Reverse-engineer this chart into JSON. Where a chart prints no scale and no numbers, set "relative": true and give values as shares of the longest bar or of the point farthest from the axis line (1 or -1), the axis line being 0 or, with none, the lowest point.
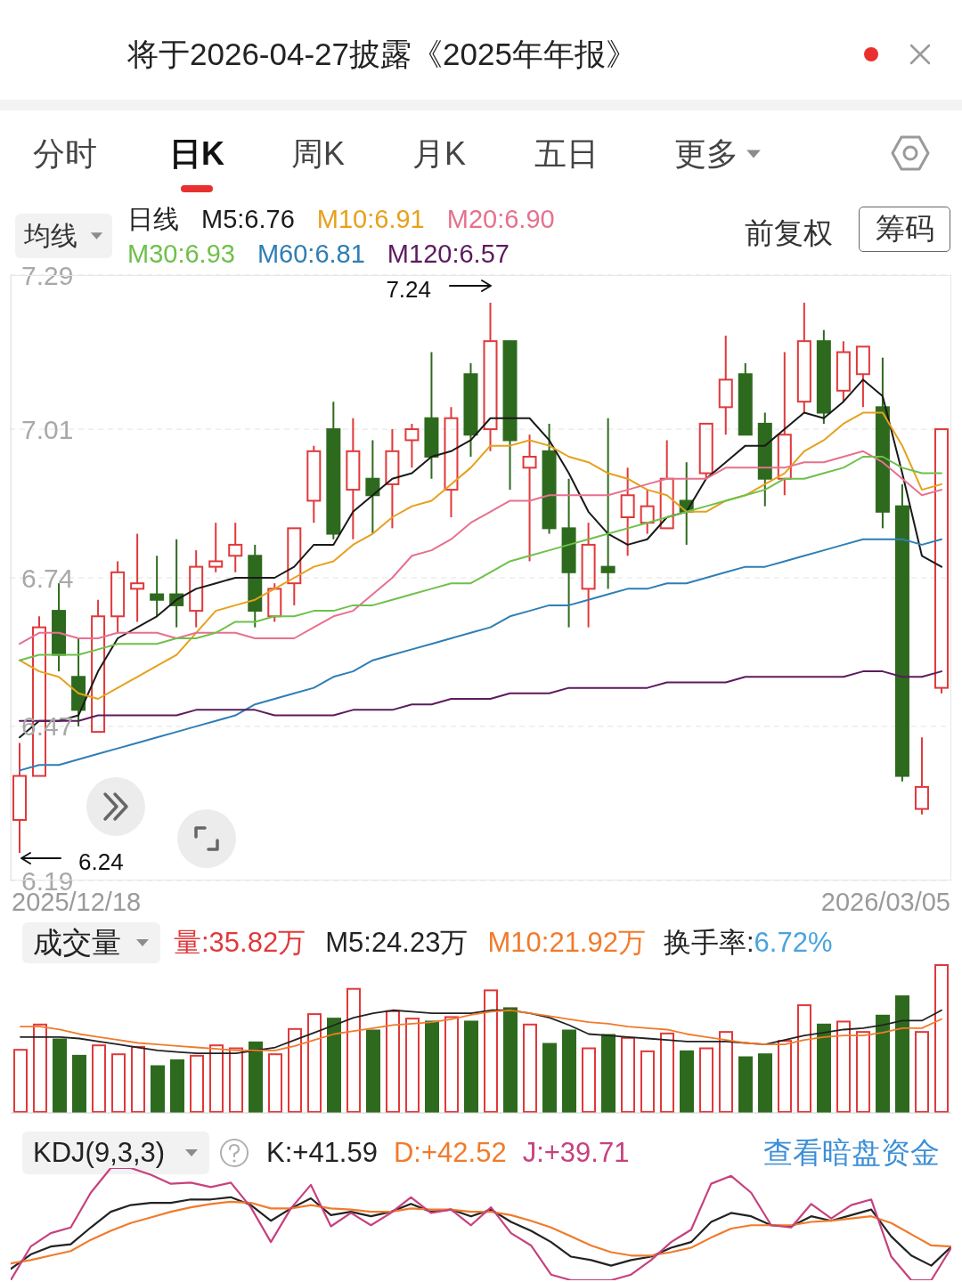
{
  "chart_data": [
    {
      "type": "other",
      "title": "将于2026-04-27披露《2025年年报》",
      "annotations": [
        "分时",
        "日K",
        "周K",
        "月K",
        "五日",
        "更多"
      ]
    },
    {
      "type": "candlestick",
      "categories": [
        null,
        null,
        null,
        null,
        null,
        null,
        null,
        null,
        null,
        null,
        null,
        null,
        null,
        null,
        null,
        null,
        null,
        null,
        null,
        null,
        null,
        null,
        null,
        null,
        null,
        null,
        null,
        null,
        null,
        null,
        null,
        null,
        null,
        null,
        null,
        null,
        null,
        null,
        null,
        null,
        null,
        null,
        null,
        null,
        null,
        null,
        null,
        null
      ],
      "ohlc": [
        [
          6.3,
          6.44,
          6.24,
          6.38
        ],
        [
          6.38,
          6.67,
          6.38,
          6.65
        ],
        [
          6.68,
          6.73,
          6.57,
          6.6
        ],
        [
          6.56,
          6.63,
          6.47,
          6.5
        ],
        [
          6.46,
          6.7,
          6.46,
          6.67
        ],
        [
          6.67,
          6.77,
          6.64,
          6.75
        ],
        [
          6.72,
          6.82,
          6.66,
          6.73
        ],
        [
          6.71,
          6.78,
          6.67,
          6.7
        ],
        [
          6.71,
          6.81,
          6.65,
          6.69
        ],
        [
          6.68,
          6.79,
          6.65,
          6.76
        ],
        [
          6.76,
          6.84,
          6.75,
          6.77
        ],
        [
          6.78,
          6.84,
          6.75,
          6.8
        ],
        [
          6.78,
          6.8,
          6.65,
          6.68
        ],
        [
          6.67,
          6.73,
          6.66,
          6.72
        ],
        [
          6.73,
          6.83,
          6.69,
          6.83
        ],
        [
          6.88,
          6.98,
          6.84,
          6.97
        ],
        [
          7.01,
          7.06,
          6.81,
          6.82
        ],
        [
          6.9,
          7.03,
          6.81,
          6.97
        ],
        [
          6.92,
          6.99,
          6.82,
          6.89
        ],
        [
          6.91,
          7.01,
          6.83,
          6.97
        ],
        [
          6.99,
          7.02,
          6.94,
          7.01
        ],
        [
          7.03,
          7.15,
          6.92,
          6.96
        ],
        [
          6.9,
          7.05,
          6.85,
          7.03
        ],
        [
          7.11,
          7.13,
          6.96,
          7.0
        ],
        [
          7.01,
          7.24,
          6.97,
          7.17
        ],
        [
          7.17,
          7.17,
          6.9,
          6.99
        ],
        [
          6.94,
          7.0,
          6.77,
          6.96
        ],
        [
          6.97,
          7.02,
          6.82,
          6.83
        ],
        [
          6.83,
          6.92,
          6.65,
          6.75
        ],
        [
          6.72,
          6.84,
          6.65,
          6.8
        ],
        [
          6.76,
          7.03,
          6.72,
          6.75
        ],
        [
          6.85,
          6.94,
          6.78,
          6.89
        ],
        [
          6.84,
          6.9,
          6.82,
          6.87
        ],
        [
          6.83,
          6.99,
          6.83,
          6.92
        ],
        [
          6.88,
          6.95,
          6.8,
          6.86
        ],
        [
          6.93,
          7.02,
          6.92,
          7.02
        ],
        [
          7.05,
          7.18,
          7.0,
          7.1
        ],
        [
          7.11,
          7.13,
          7.0,
          7.0
        ],
        [
          7.02,
          7.04,
          6.87,
          6.92
        ],
        [
          6.92,
          7.15,
          6.89,
          7.0
        ],
        [
          7.06,
          7.24,
          7.04,
          7.17
        ],
        [
          7.17,
          7.19,
          7.02,
          7.04
        ],
        [
          7.08,
          7.17,
          7.06,
          7.15
        ],
        [
          7.11,
          7.16,
          7.05,
          7.16
        ],
        [
          7.05,
          7.14,
          6.83,
          6.86
        ],
        [
          6.87,
          6.91,
          6.37,
          6.38
        ],
        [
          6.32,
          6.45,
          6.31,
          6.36
        ],
        [
          6.54,
          7.01,
          6.53,
          7.01
        ]
      ],
      "colors": [
        "#e0393b",
        "#e0393b",
        "#2e6a1e",
        "#2e6a1e",
        "#e0393b",
        "#e0393b",
        "#e0393b",
        "#2e6a1e",
        "#2e6a1e",
        "#e0393b",
        "#e0393b",
        "#e0393b",
        "#2e6a1e",
        "#e0393b",
        "#e0393b",
        "#e0393b",
        "#2e6a1e",
        "#e0393b",
        "#2e6a1e",
        "#e0393b",
        "#e0393b",
        "#2e6a1e",
        "#e0393b",
        "#2e6a1e",
        "#e0393b",
        "#2e6a1e",
        "#e0393b",
        "#2e6a1e",
        "#2e6a1e",
        "#e0393b",
        "#2e6a1e",
        "#e0393b",
        "#e0393b",
        "#e0393b",
        "#2e6a1e",
        "#e0393b",
        "#e0393b",
        "#2e6a1e",
        "#2e6a1e",
        "#e0393b",
        "#e0393b",
        "#2e6a1e",
        "#e0393b",
        "#e0393b",
        "#2e6a1e",
        "#2e6a1e",
        "#e0393b",
        "#e0393b"
      ],
      "series": [
        {
          "name": "M5:6.76",
          "type": "line",
          "color": "#1a1a1a",
          "values": [
            6.45,
            6.48,
            6.48,
            6.49,
            6.57,
            6.63,
            6.65,
            6.67,
            6.7,
            6.72,
            6.73,
            6.74,
            6.74,
            6.74,
            6.76,
            6.8,
            6.8,
            6.86,
            6.89,
            6.92,
            6.93,
            6.96,
            6.97,
            6.99,
            7.03,
            7.03,
            7.03,
            6.99,
            6.93,
            6.86,
            6.82,
            6.8,
            6.81,
            6.85,
            6.86,
            6.92,
            6.95,
            6.98,
            6.98,
            7.01,
            7.04,
            7.03,
            7.06,
            7.1,
            7.07,
            6.93,
            6.78,
            6.76
          ]
        },
        {
          "name": "M10:6.91",
          "type": "line",
          "color": "#e6a11c",
          "values": [
            6.59,
            6.57,
            6.56,
            6.53,
            6.52,
            6.54,
            6.56,
            6.58,
            6.6,
            6.64,
            6.68,
            6.69,
            6.7,
            6.72,
            6.74,
            6.76,
            6.77,
            6.8,
            6.82,
            6.85,
            6.87,
            6.88,
            6.91,
            6.94,
            6.98,
            6.98,
            6.99,
            6.98,
            6.96,
            6.95,
            6.93,
            6.92,
            6.9,
            6.89,
            6.86,
            6.86,
            6.88,
            6.89,
            6.91,
            6.93,
            6.97,
            6.99,
            7.02,
            7.04,
            7.04,
            6.98,
            6.9,
            6.91
          ]
        },
        {
          "name": "M20:6.90",
          "type": "line",
          "color": "#e6718d",
          "values": [
            6.62,
            6.64,
            6.64,
            6.63,
            6.63,
            6.64,
            6.64,
            6.64,
            6.63,
            6.64,
            6.64,
            6.64,
            6.63,
            6.63,
            6.63,
            6.65,
            6.67,
            6.68,
            6.71,
            6.74,
            6.78,
            6.79,
            6.81,
            6.84,
            6.86,
            6.88,
            6.88,
            6.89,
            6.89,
            6.89,
            6.89,
            6.9,
            6.91,
            6.92,
            6.92,
            6.92,
            6.94,
            6.94,
            6.94,
            6.94,
            6.95,
            6.95,
            6.96,
            6.97,
            6.95,
            6.92,
            6.89,
            6.9
          ]
        },
        {
          "name": "M30:6.93",
          "type": "line",
          "color": "#6fc04b",
          "values": [
            6.59,
            6.6,
            6.6,
            6.6,
            6.61,
            6.62,
            6.62,
            6.62,
            6.63,
            6.63,
            6.64,
            6.66,
            6.66,
            6.67,
            6.67,
            6.68,
            6.68,
            6.69,
            6.69,
            6.7,
            6.71,
            6.72,
            6.73,
            6.73,
            6.75,
            6.77,
            6.78,
            6.79,
            6.8,
            6.81,
            6.82,
            6.83,
            6.84,
            6.85,
            6.86,
            6.87,
            6.88,
            6.89,
            6.9,
            6.92,
            6.92,
            6.93,
            6.94,
            6.96,
            6.96,
            6.94,
            6.93,
            6.93
          ]
        },
        {
          "name": "M60:6.81",
          "type": "line",
          "color": "#2f7eb5",
          "values": [
            6.39,
            6.4,
            6.4,
            6.41,
            6.42,
            6.43,
            6.44,
            6.45,
            6.46,
            6.47,
            6.48,
            6.49,
            6.51,
            6.52,
            6.53,
            6.54,
            6.56,
            6.57,
            6.59,
            6.6,
            6.61,
            6.62,
            6.63,
            6.64,
            6.65,
            6.67,
            6.68,
            6.69,
            6.69,
            6.7,
            6.71,
            6.72,
            6.72,
            6.73,
            6.73,
            6.74,
            6.75,
            6.76,
            6.76,
            6.77,
            6.78,
            6.79,
            6.8,
            6.81,
            6.81,
            6.81,
            6.8,
            6.81
          ]
        },
        {
          "name": "M120:6.57",
          "type": "line",
          "color": "#5c1b5e",
          "values": [
            6.48,
            6.48,
            6.48,
            6.48,
            6.49,
            6.49,
            6.49,
            6.49,
            6.49,
            6.5,
            6.5,
            6.5,
            6.5,
            6.49,
            6.49,
            6.49,
            6.49,
            6.5,
            6.5,
            6.5,
            6.51,
            6.51,
            6.52,
            6.52,
            6.52,
            6.53,
            6.53,
            6.53,
            6.54,
            6.54,
            6.54,
            6.54,
            6.54,
            6.55,
            6.55,
            6.55,
            6.55,
            6.56,
            6.56,
            6.56,
            6.56,
            6.56,
            6.56,
            6.57,
            6.57,
            6.56,
            6.56,
            6.57
          ]
        }
      ],
      "ylim": [
        6.19,
        7.29
      ],
      "yticks": [
        6.19,
        6.47,
        6.74,
        7.01,
        7.29
      ],
      "grid": "y",
      "legend": "top left",
      "tick_labels": "y",
      "annotations": [
        "均线",
        "日线",
        "前复权",
        "筹码",
        "2025/12/18",
        "2026/03/05",
        "7.24",
        "6.24"
      ]
    },
    {
      "type": "bar",
      "categories": [
        null,
        null,
        null,
        null,
        null,
        null,
        null,
        null,
        null,
        null,
        null,
        null,
        null,
        null,
        null,
        null,
        null,
        null,
        null,
        null,
        null,
        null,
        null,
        null,
        null,
        null,
        null,
        null,
        null,
        null,
        null,
        null,
        null,
        null,
        null,
        null,
        null,
        null,
        null,
        null,
        null,
        null,
        null,
        null,
        null,
        null,
        null,
        null
      ],
      "relative": true,
      "series": [
        {
          "name": "量:35.82万",
          "type": "bar",
          "color": "#e0393b",
          "colors": [
            "#e0393b",
            "#e0393b",
            "#2e6a1e",
            "#2e6a1e",
            "#e0393b",
            "#e0393b",
            "#e0393b",
            "#2e6a1e",
            "#2e6a1e",
            "#e0393b",
            "#e0393b",
            "#e0393b",
            "#2e6a1e",
            "#e0393b",
            "#e0393b",
            "#e0393b",
            "#2e6a1e",
            "#e0393b",
            "#2e6a1e",
            "#e0393b",
            "#e0393b",
            "#2e6a1e",
            "#e0393b",
            "#2e6a1e",
            "#e0393b",
            "#2e6a1e",
            "#e0393b",
            "#2e6a1e",
            "#2e6a1e",
            "#e0393b",
            "#2e6a1e",
            "#e0393b",
            "#e0393b",
            "#e0393b",
            "#2e6a1e",
            "#e0393b",
            "#e0393b",
            "#2e6a1e",
            "#2e6a1e",
            "#e0393b",
            "#e0393b",
            "#2e6a1e",
            "#e0393b",
            "#e0393b",
            "#2e6a1e",
            "#2e6a1e",
            "#e0393b",
            "#e0393b"
          ],
          "values": [
            0.43,
            0.6,
            0.5,
            0.39,
            0.46,
            0.4,
            0.45,
            0.32,
            0.36,
            0.39,
            0.46,
            0.44,
            0.48,
            0.4,
            0.57,
            0.67,
            0.64,
            0.84,
            0.56,
            0.69,
            0.64,
            0.62,
            0.65,
            0.62,
            0.83,
            0.71,
            0.6,
            0.47,
            0.56,
            0.44,
            0.53,
            0.51,
            0.42,
            0.54,
            0.42,
            0.44,
            0.55,
            0.38,
            0.4,
            0.49,
            0.73,
            0.6,
            0.62,
            0.55,
            0.66,
            0.79,
            0.55,
            1
          ]
        },
        {
          "name": "M5:24.23万",
          "type": "line",
          "color": "#222222",
          "values": [
            0.51,
            0.51,
            0.51,
            0.5,
            0.48,
            0.46,
            0.44,
            0.42,
            0.41,
            0.4,
            0.4,
            0.4,
            0.42,
            0.44,
            0.49,
            0.54,
            0.59,
            0.64,
            0.67,
            0.69,
            0.68,
            0.67,
            0.67,
            0.67,
            0.69,
            0.69,
            0.67,
            0.64,
            0.59,
            0.53,
            0.52,
            0.51,
            0.5,
            0.49,
            0.48,
            0.48,
            0.48,
            0.47,
            0.46,
            0.49,
            0.52,
            0.54,
            0.56,
            0.57,
            0.59,
            0.62,
            0.62,
            0.69
          ]
        },
        {
          "name": "M10:21.92万",
          "type": "line",
          "color": "#f07b2c",
          "values": [
            0.58,
            0.58,
            0.56,
            0.53,
            0.51,
            0.49,
            0.47,
            0.46,
            0.45,
            0.44,
            0.43,
            0.42,
            0.42,
            0.42,
            0.45,
            0.49,
            0.53,
            0.55,
            0.57,
            0.59,
            0.6,
            0.61,
            0.63,
            0.66,
            0.68,
            0.69,
            0.67,
            0.65,
            0.63,
            0.61,
            0.6,
            0.58,
            0.57,
            0.56,
            0.53,
            0.51,
            0.49,
            0.47,
            0.46,
            0.46,
            0.49,
            0.51,
            0.52,
            0.52,
            0.54,
            0.57,
            0.57,
            0.63
          ]
        }
      ],
      "legend": "top left",
      "tick_labels": false,
      "annotations": [
        "成交量",
        "换手率:",
        "6.72%"
      ]
    },
    {
      "type": "line",
      "categories": [
        null,
        null,
        null,
        null,
        null,
        null,
        null,
        null,
        null,
        null,
        null,
        null,
        null,
        null,
        null,
        null,
        null,
        null,
        null,
        null,
        null,
        null,
        null,
        null,
        null,
        null,
        null,
        null,
        null,
        null,
        null,
        null,
        null,
        null,
        null,
        null,
        null,
        null,
        null,
        null,
        null,
        null,
        null,
        null,
        null,
        null,
        null,
        null
      ],
      "relative": true,
      "series": [
        {
          "name": "K:+41.59",
          "color": "#222222",
          "values": [
            0.1,
            0.23,
            0.3,
            0.32,
            0.47,
            0.61,
            0.67,
            0.69,
            0.69,
            0.72,
            0.72,
            0.74,
            0.67,
            0.53,
            0.64,
            0.73,
            0.58,
            0.61,
            0.57,
            0.61,
            0.68,
            0.61,
            0.63,
            0.57,
            0.63,
            0.52,
            0.44,
            0.34,
            0.21,
            0.18,
            0.13,
            0.18,
            0.21,
            0.29,
            0.34,
            0.52,
            0.6,
            0.57,
            0.49,
            0.48,
            0.57,
            0.53,
            0.58,
            0.63,
            0.39,
            0.22,
            0.13,
            0.3
          ]
        },
        {
          "name": "D:+42.52",
          "color": "#f07b2c",
          "values": [
            0.15,
            0.18,
            0.22,
            0.26,
            0.36,
            0.44,
            0.51,
            0.56,
            0.61,
            0.65,
            0.68,
            0.7,
            0.69,
            0.64,
            0.64,
            0.67,
            0.64,
            0.63,
            0.61,
            0.61,
            0.64,
            0.63,
            0.63,
            0.61,
            0.61,
            0.58,
            0.53,
            0.47,
            0.39,
            0.31,
            0.25,
            0.22,
            0.22,
            0.25,
            0.29,
            0.38,
            0.46,
            0.49,
            0.49,
            0.49,
            0.52,
            0.53,
            0.55,
            0.57,
            0.51,
            0.41,
            0.31,
            0.3
          ]
        },
        {
          "name": "J:+39.71",
          "color": "#c7417e",
          "values": [
            0,
            0.3,
            0.42,
            0.47,
            0.78,
            1,
            1,
            0.94,
            0.86,
            0.87,
            0.83,
            0.87,
            0.65,
            0.34,
            0.64,
            0.85,
            0.48,
            0.6,
            0.49,
            0.6,
            0.74,
            0.6,
            0.63,
            0.49,
            0.65,
            0.42,
            0.31,
            0.05,
            0,
            0,
            0,
            0.05,
            0.18,
            0.34,
            0.45,
            0.86,
            0.93,
            0.78,
            0.49,
            0.47,
            0.68,
            0.55,
            0.67,
            0.72,
            0.21,
            0,
            0,
            0.29
          ]
        }
      ],
      "legend": "top left",
      "tick_labels": false,
      "annotations": [
        "KDJ(9,3,3)",
        "查看暗盘资金"
      ]
    }
  ]
}
